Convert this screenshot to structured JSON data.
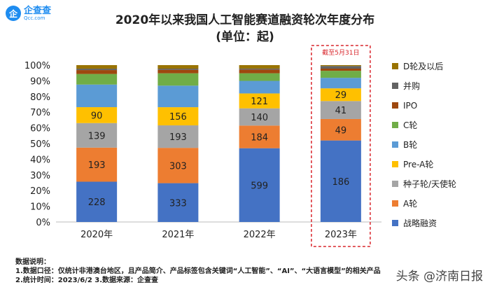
{
  "logo": {
    "brand": "企查查",
    "sub": "Qcc.com"
  },
  "chart_data": {
    "type": "bar",
    "stacked": "percent",
    "title": "2020年以来我国人工智能赛道融资轮次年度分布",
    "subtitle": "(单位：起)",
    "categories": [
      "2020年",
      "2021年",
      "2022年",
      "2023年"
    ],
    "yticks": [
      "0%",
      "10%",
      "20%",
      "30%",
      "40%",
      "50%",
      "60%",
      "70%",
      "80%",
      "90%",
      "100%"
    ],
    "ylim": [
      0,
      100
    ],
    "legend_position": "right",
    "annotation": "截至5月31日",
    "annotation_color": "#d9262c",
    "series": [
      {
        "name": "战略融资",
        "color": "#4472c4",
        "values": [
          228,
          333,
          599,
          186
        ],
        "labeled": true
      },
      {
        "name": "A轮",
        "color": "#ed7d31",
        "values": [
          193,
          303,
          184,
          49
        ],
        "labeled": true
      },
      {
        "name": "种子轮/天使轮",
        "color": "#a5a5a5",
        "values": [
          139,
          193,
          140,
          41
        ],
        "labeled": true
      },
      {
        "name": "Pre-A轮",
        "color": "#ffc000",
        "values": [
          90,
          156,
          121,
          29
        ],
        "labeled": true
      },
      {
        "name": "B轮",
        "color": "#5b9bd5",
        "values": [
          128,
          185,
          102,
          24
        ],
        "labeled": false
      },
      {
        "name": "C轮",
        "color": "#70ad47",
        "values": [
          60,
          106,
          62,
          16
        ],
        "labeled": false
      },
      {
        "name": "IPO",
        "color": "#9e480e",
        "values": [
          22,
          30,
          30,
          5
        ],
        "labeled": false
      },
      {
        "name": "并购",
        "color": "#636363",
        "values": [
          8,
          10,
          8,
          6
        ],
        "labeled": false
      },
      {
        "name": "D轮及以后",
        "color": "#997300",
        "values": [
          20,
          30,
          28,
          2
        ],
        "labeled": false
      }
    ]
  },
  "notes": {
    "heading": "数据说明：",
    "line1": "1.数据口径：仅统计非港澳台地区，且产品简介、产品标签包含关键词“人工智能”、“AI”、“大语言模型”的相关产品",
    "line2": "2.统计时间：2023/6/2      3.数据来源：企查查"
  },
  "watermark": "头条 @济南日报"
}
